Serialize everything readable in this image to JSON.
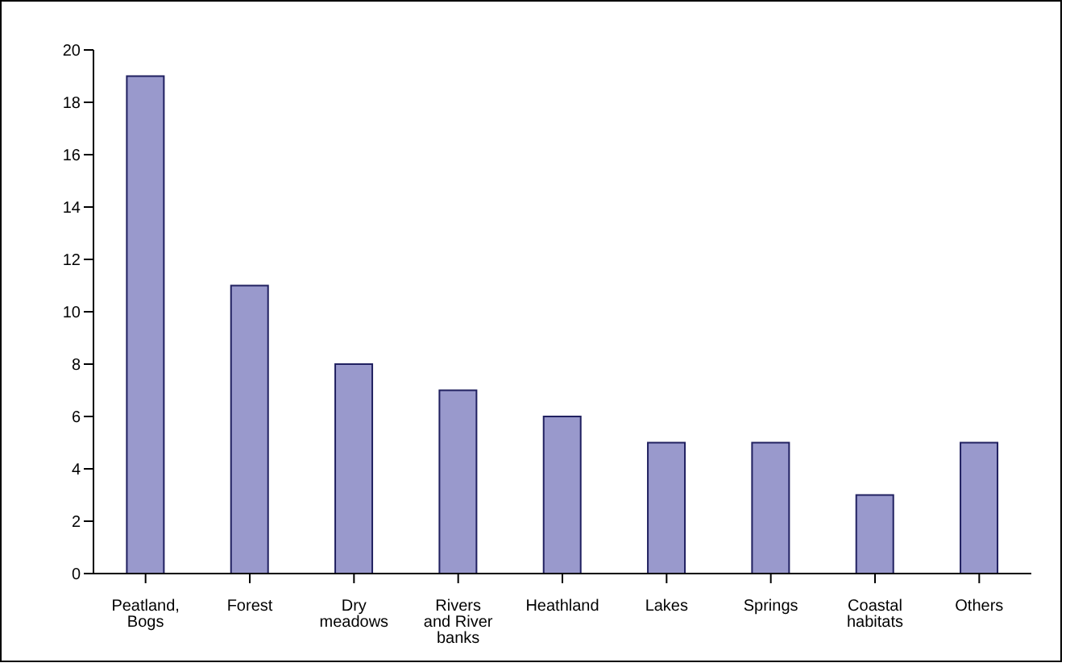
{
  "chart_data": {
    "type": "bar",
    "categories": [
      "Peatland, Bogs",
      "Forest",
      "Dry meadows",
      "Rivers and River banks",
      "Heathland",
      "Lakes",
      "Springs",
      "Coastal habitats",
      "Others"
    ],
    "values": [
      19,
      11,
      8,
      7,
      6,
      5,
      5,
      3,
      5
    ],
    "color": "#9999cc",
    "ylim": [
      0,
      20
    ],
    "yticks": [
      0,
      2,
      4,
      6,
      8,
      10,
      12,
      14,
      16,
      18,
      20
    ],
    "grid": false,
    "legend": false
  }
}
